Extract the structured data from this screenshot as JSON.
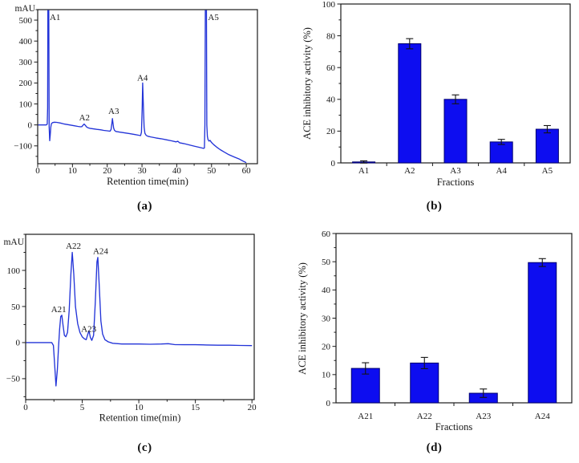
{
  "figure": {
    "captions": [
      {
        "label": "(a)"
      },
      {
        "label": "(b)"
      },
      {
        "label": "(c)"
      },
      {
        "label": "(d)"
      }
    ]
  },
  "chart_data": [
    {
      "id": "chromatogram-a",
      "panel": "a",
      "type": "line",
      "ylabel": "mAU",
      "xlabel": "Retention time(min)",
      "xlim": [
        0,
        63.2
      ],
      "ylim": [
        -185,
        550
      ],
      "xticks": [
        0,
        10,
        20,
        30,
        40,
        50,
        60
      ],
      "x_minor_step": 5,
      "yticks": [
        -100,
        0,
        100,
        200,
        300,
        400,
        500
      ],
      "y_minor_step": 50,
      "line_color": "#2334d8",
      "annotations": [
        {
          "text": "A1",
          "x": 3.45,
          "y": 500
        },
        {
          "text": "A2",
          "x": 11.9,
          "y": 22
        },
        {
          "text": "A3",
          "x": 20.3,
          "y": 52
        },
        {
          "text": "A4",
          "x": 28.6,
          "y": 212
        },
        {
          "text": "A5",
          "x": 49.0,
          "y": 500
        }
      ],
      "points": [
        [
          0,
          0
        ],
        [
          2.4,
          0
        ],
        [
          2.6,
          1
        ],
        [
          2.75,
          5
        ],
        [
          2.85,
          80
        ],
        [
          2.95,
          700
        ],
        [
          3.15,
          700
        ],
        [
          3.3,
          -10
        ],
        [
          3.45,
          -75
        ],
        [
          3.6,
          -50
        ],
        [
          3.75,
          -12
        ],
        [
          3.95,
          6
        ],
        [
          4.3,
          11
        ],
        [
          4.8,
          13
        ],
        [
          5.5,
          12
        ],
        [
          6.5,
          9
        ],
        [
          7.5,
          5
        ],
        [
          8.5,
          2
        ],
        [
          9.5,
          -1
        ],
        [
          10.5,
          -4
        ],
        [
          11.5,
          -7
        ],
        [
          12.3,
          -9
        ],
        [
          12.7,
          -8
        ],
        [
          13.0,
          -2
        ],
        [
          13.35,
          4
        ],
        [
          13.7,
          -2
        ],
        [
          14.1,
          -10
        ],
        [
          14.5,
          -14
        ],
        [
          15,
          -16
        ],
        [
          16,
          -19
        ],
        [
          17,
          -21
        ],
        [
          18,
          -23
        ],
        [
          19,
          -26
        ],
        [
          20,
          -28
        ],
        [
          20.8,
          -30
        ],
        [
          21.1,
          -22
        ],
        [
          21.35,
          10
        ],
        [
          21.5,
          30
        ],
        [
          21.65,
          8
        ],
        [
          21.85,
          -15
        ],
        [
          22.1,
          -26
        ],
        [
          22.5,
          -31
        ],
        [
          23.5,
          -34
        ],
        [
          25,
          -38
        ],
        [
          26.5,
          -42
        ],
        [
          28,
          -46
        ],
        [
          29,
          -49
        ],
        [
          29.6,
          -51
        ],
        [
          29.85,
          -35
        ],
        [
          30.05,
          80
        ],
        [
          30.2,
          200
        ],
        [
          30.4,
          90
        ],
        [
          30.6,
          -10
        ],
        [
          30.85,
          -40
        ],
        [
          31.2,
          -50
        ],
        [
          31.7,
          -54
        ],
        [
          32.5,
          -57
        ],
        [
          34,
          -62
        ],
        [
          35.5,
          -66
        ],
        [
          37,
          -71
        ],
        [
          38.5,
          -76
        ],
        [
          39.8,
          -81
        ],
        [
          40.3,
          -78
        ],
        [
          40.8,
          -85
        ],
        [
          42,
          -89
        ],
        [
          43.5,
          -95
        ],
        [
          45,
          -101
        ],
        [
          46.5,
          -107
        ],
        [
          47.7,
          -112
        ],
        [
          47.95,
          -110
        ],
        [
          48.1,
          0
        ],
        [
          48.25,
          700
        ],
        [
          48.5,
          700
        ],
        [
          48.65,
          0
        ],
        [
          48.8,
          -55
        ],
        [
          49.0,
          -70
        ],
        [
          49.3,
          -77
        ],
        [
          49.6,
          -74
        ],
        [
          49.95,
          -83
        ],
        [
          50.6,
          -94
        ],
        [
          51.5,
          -106
        ],
        [
          52.5,
          -118
        ],
        [
          53.5,
          -128
        ],
        [
          55,
          -142
        ],
        [
          56.5,
          -153
        ],
        [
          58,
          -163
        ],
        [
          59,
          -172
        ],
        [
          60,
          -180
        ]
      ]
    },
    {
      "id": "bars-b",
      "panel": "b",
      "type": "bar",
      "ylabel": "ACE inhibitory activity (%)",
      "xlabel": "Fractions",
      "categories": [
        "A1",
        "A2",
        "A3",
        "A4",
        "A5"
      ],
      "values": [
        0.6,
        75,
        40,
        13.2,
        21.2
      ],
      "errors": [
        0.7,
        3.2,
        2.8,
        1.6,
        2.3
      ],
      "ylim": [
        0,
        100
      ],
      "yticks": [
        0,
        20,
        40,
        60,
        80,
        100
      ],
      "y_minor_step": 10,
      "bar_color": "#0d0df0",
      "bar_edge": "#01016e",
      "error_color": "#141414"
    },
    {
      "id": "chromatogram-c",
      "panel": "c",
      "type": "line",
      "ylabel": "mAU",
      "xlabel": "Retention time(min)",
      "xlim": [
        0,
        20.2
      ],
      "ylim": [
        -79,
        150
      ],
      "xticks": [
        0,
        5,
        10,
        15,
        20
      ],
      "x_minor_step": 2.5,
      "yticks": [
        -50,
        0,
        50,
        100
      ],
      "y_minor_step": 25,
      "line_color": "#2334d8",
      "annotations": [
        {
          "text": "A21",
          "x": 2.25,
          "y": 42
        },
        {
          "text": "A22",
          "x": 3.55,
          "y": 130
        },
        {
          "text": "A23",
          "x": 4.9,
          "y": 15
        },
        {
          "text": "A24",
          "x": 5.95,
          "y": 123
        }
      ],
      "points": [
        [
          0,
          0
        ],
        [
          2.3,
          0
        ],
        [
          2.45,
          -4
        ],
        [
          2.55,
          -28
        ],
        [
          2.68,
          -60
        ],
        [
          2.8,
          -38
        ],
        [
          2.9,
          -8
        ],
        [
          3.0,
          18
        ],
        [
          3.1,
          36
        ],
        [
          3.2,
          38
        ],
        [
          3.3,
          24
        ],
        [
          3.42,
          10
        ],
        [
          3.55,
          8
        ],
        [
          3.7,
          14
        ],
        [
          3.85,
          45
        ],
        [
          4.0,
          95
        ],
        [
          4.12,
          125
        ],
        [
          4.25,
          95
        ],
        [
          4.4,
          50
        ],
        [
          4.6,
          26
        ],
        [
          4.8,
          14
        ],
        [
          5.0,
          8
        ],
        [
          5.2,
          5
        ],
        [
          5.35,
          4
        ],
        [
          5.5,
          12
        ],
        [
          5.6,
          16
        ],
        [
          5.72,
          7
        ],
        [
          5.85,
          3
        ],
        [
          6.0,
          10
        ],
        [
          6.15,
          55
        ],
        [
          6.3,
          112
        ],
        [
          6.38,
          118
        ],
        [
          6.5,
          80
        ],
        [
          6.65,
          30
        ],
        [
          6.8,
          12
        ],
        [
          7.0,
          4
        ],
        [
          7.3,
          1
        ],
        [
          7.7,
          -1
        ],
        [
          8.5,
          -2
        ],
        [
          10,
          -2
        ],
        [
          11,
          -2.3
        ],
        [
          12,
          -2
        ],
        [
          12.6,
          -1.5
        ],
        [
          13.2,
          -2.8
        ],
        [
          14,
          -3
        ],
        [
          15,
          -3
        ],
        [
          16,
          -3.3
        ],
        [
          17,
          -3.6
        ],
        [
          18,
          -3.6
        ],
        [
          19,
          -4
        ],
        [
          20,
          -4.2
        ]
      ]
    },
    {
      "id": "bars-d",
      "panel": "d",
      "type": "bar",
      "ylabel": "ACE inhibitory activity (%)",
      "xlabel": "Fractions",
      "categories": [
        "A21",
        "A22",
        "A23",
        "A24"
      ],
      "values": [
        12.2,
        14.1,
        3.4,
        49.7
      ],
      "errors": [
        2.0,
        2.0,
        1.5,
        1.4
      ],
      "ylim": [
        0,
        60
      ],
      "yticks": [
        0,
        10,
        20,
        30,
        40,
        50,
        60
      ],
      "y_minor_step": 5,
      "bar_color": "#0d0df0",
      "bar_edge": "#01016e",
      "error_color": "#141414"
    }
  ]
}
